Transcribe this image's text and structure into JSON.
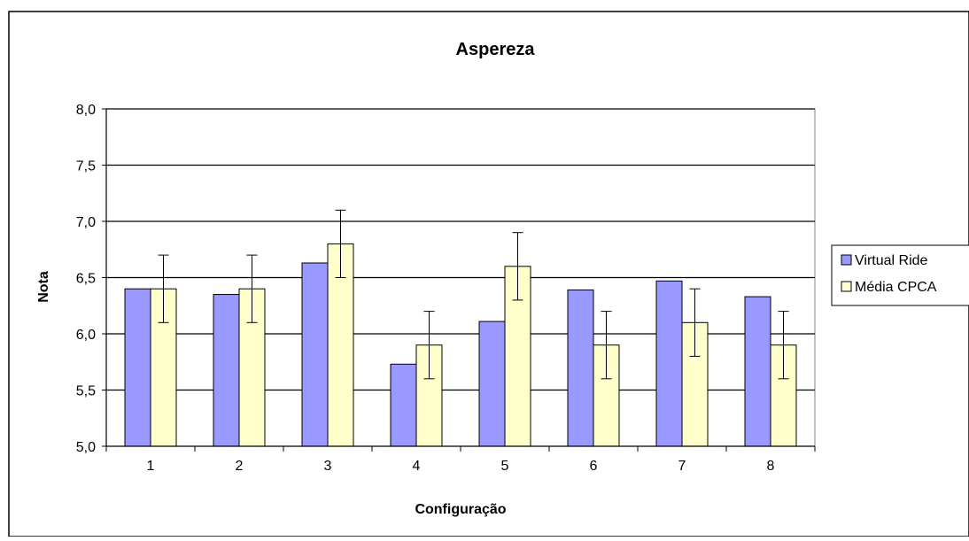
{
  "chart_data": {
    "type": "bar",
    "title": "Aspereza",
    "xlabel": "Configuração",
    "ylabel": "Nota",
    "categories": [
      "1",
      "2",
      "3",
      "4",
      "5",
      "6",
      "7",
      "8"
    ],
    "ylim": [
      5.0,
      8.0
    ],
    "yticks": [
      "5,0",
      "5,5",
      "6,0",
      "6,5",
      "7,0",
      "7,5",
      "8,0"
    ],
    "ytick_values": [
      5.0,
      5.5,
      6.0,
      6.5,
      7.0,
      7.5,
      8.0
    ],
    "grid": true,
    "legend_position": "right",
    "series": [
      {
        "name": "Virtual Ride",
        "color": "#9999ff",
        "values": [
          6.4,
          6.35,
          6.63,
          5.73,
          6.11,
          6.39,
          6.47,
          6.33
        ]
      },
      {
        "name": "Média CPCA",
        "color": "#ffffcc",
        "values": [
          6.4,
          6.4,
          6.8,
          5.9,
          6.6,
          5.9,
          6.1,
          5.9
        ],
        "error": 0.3
      }
    ]
  }
}
